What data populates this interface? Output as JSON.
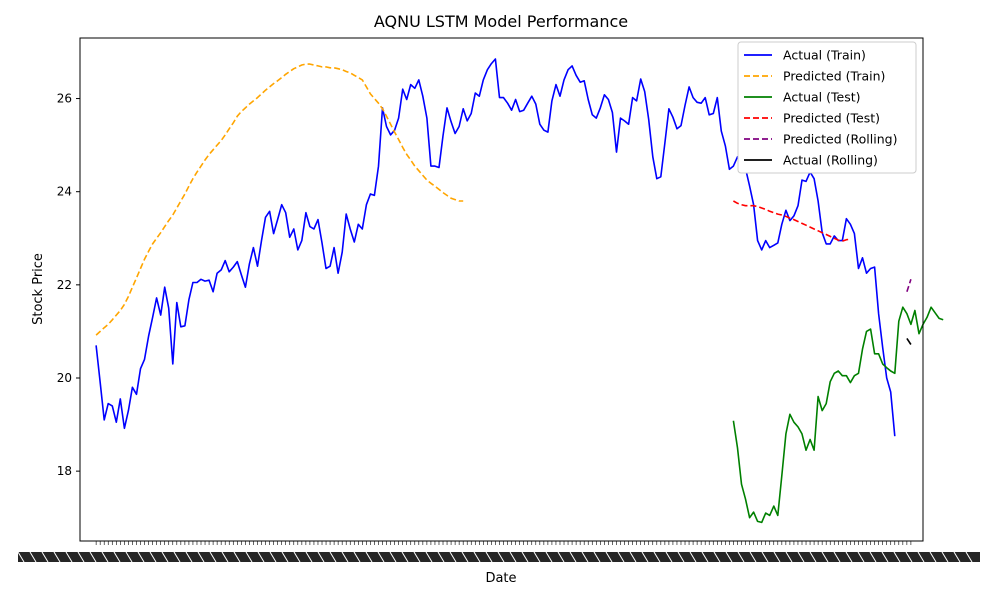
{
  "chart_data": {
    "type": "line",
    "title": "AQNU LSTM Model Performance",
    "xlabel": "Date",
    "ylabel": "Stock Price",
    "ylim": [
      16.5,
      27.3
    ],
    "xlim": [
      -4,
      205
    ],
    "yticks": [
      18,
      20,
      22,
      24,
      26
    ],
    "x_tick_labels_note": "overlapping date labels, illegible",
    "legend_position": "top-right",
    "grid": false,
    "series": [
      {
        "name": "Actual (Train)",
        "color": "#0000ff",
        "style": "solid",
        "x_start": 0,
        "values": [
          20.7,
          19.9,
          19.1,
          19.45,
          19.4,
          19.05,
          19.55,
          18.92,
          19.3,
          19.8,
          19.65,
          20.2,
          20.4,
          20.9,
          21.3,
          21.72,
          21.35,
          21.95,
          21.5,
          20.3,
          21.62,
          21.1,
          21.12,
          21.68,
          22.05,
          22.05,
          22.12,
          22.08,
          22.1,
          21.85,
          22.25,
          22.32,
          22.52,
          22.28,
          22.38,
          22.5,
          22.22,
          21.95,
          22.45,
          22.8,
          22.4,
          22.95,
          23.45,
          23.58,
          23.1,
          23.4,
          23.72,
          23.55,
          23.02,
          23.2,
          22.75,
          22.95,
          23.55,
          23.25,
          23.2,
          23.4,
          22.9,
          22.35,
          22.4,
          22.8,
          22.25,
          22.7,
          23.52,
          23.2,
          22.92,
          23.3,
          23.2,
          23.72,
          23.95,
          23.92,
          24.55,
          25.8,
          25.4,
          25.22,
          25.32,
          25.58,
          26.2,
          25.98,
          26.3,
          26.22,
          26.4,
          26.05,
          25.58,
          24.55,
          24.55,
          24.52,
          25.2,
          25.8,
          25.5,
          25.25,
          25.4,
          25.78,
          25.52,
          25.68,
          26.12,
          26.05,
          26.4,
          26.62,
          26.75,
          26.85,
          26.02,
          26.02,
          25.9,
          25.75,
          25.98,
          25.72,
          25.75,
          25.9,
          26.05,
          25.88,
          25.45,
          25.32,
          25.28,
          25.95,
          26.3,
          26.05,
          26.4,
          26.62,
          26.7,
          26.5,
          26.35,
          26.38,
          25.98,
          25.65,
          25.58,
          25.8,
          26.08,
          25.98,
          25.7,
          24.85,
          25.58,
          25.52,
          25.45,
          26.02,
          25.95,
          26.42,
          26.15,
          25.55,
          24.75,
          24.28,
          24.32,
          25.05,
          25.78,
          25.6,
          25.35,
          25.42,
          25.85,
          26.25,
          26.02,
          25.92,
          25.9,
          26.02,
          25.65,
          25.68,
          26.02,
          25.3,
          24.98,
          24.48,
          24.55,
          24.75,
          24.68,
          24.5,
          24.12,
          23.72,
          22.95,
          22.75,
          22.95,
          22.8,
          22.85,
          22.9,
          23.3,
          23.6,
          23.38,
          23.48,
          23.7,
          24.25,
          24.22,
          24.42,
          24.28,
          23.8,
          23.12,
          22.88,
          22.88,
          23.05,
          22.95,
          22.95,
          23.42,
          23.3,
          23.1,
          22.35,
          22.58,
          22.25,
          22.35,
          22.38,
          21.38,
          20.65,
          20.0,
          19.7,
          18.75
        ]
      },
      {
        "name": "Predicted (Train)",
        "color": "#ffa500",
        "style": "dashed",
        "x_start": 0,
        "values": [
          20.92,
          21.0,
          21.08,
          21.15,
          21.25,
          21.35,
          21.45,
          21.58,
          21.75,
          21.95,
          22.15,
          22.35,
          22.55,
          22.72,
          22.88,
          23.0,
          23.12,
          23.25,
          23.38,
          23.5,
          23.65,
          23.8,
          23.95,
          24.12,
          24.28,
          24.42,
          24.55,
          24.68,
          24.8,
          24.9,
          25.0,
          25.1,
          25.22,
          25.35,
          25.48,
          25.62,
          25.72,
          25.8,
          25.88,
          25.95,
          26.02,
          26.1,
          26.18,
          26.25,
          26.32,
          26.38,
          26.45,
          26.52,
          26.58,
          26.64,
          26.68,
          26.72,
          26.74,
          26.74,
          26.72,
          26.7,
          26.68,
          26.68,
          26.66,
          26.66,
          26.64,
          26.62,
          26.58,
          26.55,
          26.5,
          26.45,
          26.4,
          26.25,
          26.1,
          26.0,
          25.9,
          25.78,
          25.62,
          25.45,
          25.28,
          25.12,
          24.95,
          24.8,
          24.68,
          24.55,
          24.45,
          24.35,
          24.25,
          24.18,
          24.12,
          24.05,
          23.98,
          23.92,
          23.86,
          23.83,
          23.8,
          23.8
        ]
      },
      {
        "name": "Actual (Test)",
        "color": "#008000",
        "style": "solid",
        "x_start": 158,
        "values": [
          19.08,
          18.5,
          17.72,
          17.4,
          17.0,
          17.12,
          16.92,
          16.9,
          17.1,
          17.05,
          17.25,
          17.05,
          17.9,
          18.8,
          19.22,
          19.05,
          18.95,
          18.8,
          18.45,
          18.68,
          18.45,
          19.6,
          19.3,
          19.45,
          19.92,
          20.1,
          20.15,
          20.05,
          20.05,
          19.9,
          20.05,
          20.1,
          20.62,
          21.0,
          21.05,
          20.52,
          20.52,
          20.3,
          20.22,
          20.15,
          20.1,
          21.22,
          21.52,
          21.38,
          21.15,
          21.45,
          20.95,
          21.15,
          21.3,
          21.52,
          21.4,
          21.28,
          21.25
        ]
      },
      {
        "name": "Predicted (Test)",
        "color": "#ff0000",
        "style": "dashed",
        "x_start": 158,
        "values": [
          23.8,
          23.75,
          23.72,
          23.7,
          23.7,
          23.7,
          23.68,
          23.65,
          23.62,
          23.58,
          23.55,
          23.52,
          23.5,
          23.47,
          23.43,
          23.4,
          23.36,
          23.32,
          23.28,
          23.24,
          23.2,
          23.16,
          23.12,
          23.08,
          23.04,
          23.0,
          22.96,
          22.94,
          22.97,
          22.98
        ]
      },
      {
        "name": "Predicted (Rolling)",
        "color": "#800080",
        "style": "dashed",
        "x": [
          201,
          202
        ],
        "values": [
          21.85,
          22.12
        ]
      },
      {
        "name": "Actual (Rolling)",
        "color": "#000000",
        "style": "solid",
        "x": [
          201,
          202
        ],
        "values": [
          20.85,
          20.72
        ]
      }
    ]
  }
}
